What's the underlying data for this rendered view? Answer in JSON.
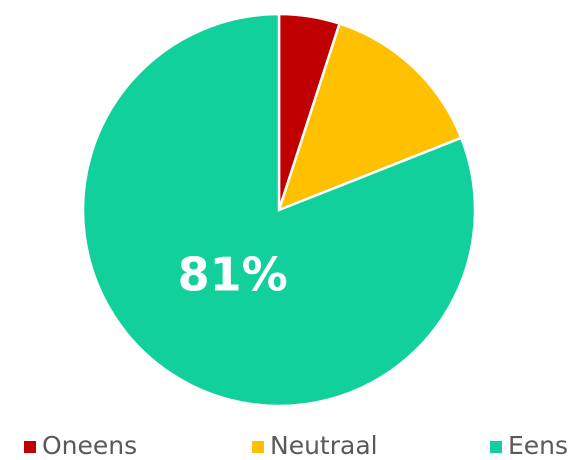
{
  "chart_data": {
    "type": "pie",
    "categories": [
      "Oneens",
      "Neutraal",
      "Eens"
    ],
    "values": [
      5,
      14,
      81
    ],
    "value_labels": [
      null,
      null,
      "81%"
    ],
    "colors": [
      "#c00000",
      "#ffc000",
      "#12d09c"
    ],
    "legend": "bottom"
  }
}
